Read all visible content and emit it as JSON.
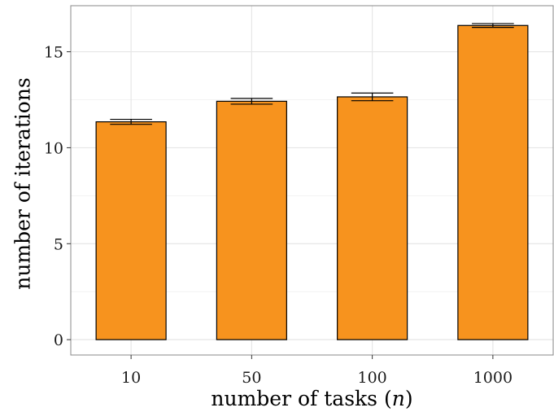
{
  "chart_data": {
    "type": "bar",
    "categories": [
      "10",
      "50",
      "100",
      "1000"
    ],
    "values": [
      11.35,
      12.42,
      12.65,
      16.37
    ],
    "errors": [
      [
        11.22,
        11.48
      ],
      [
        12.27,
        12.57
      ],
      [
        12.45,
        12.85
      ],
      [
        16.27,
        16.47
      ]
    ],
    "xlabel": "number of tasks (n)",
    "ylabel": "number of iterations",
    "ylim": [
      -0.8,
      17.4
    ],
    "yticks": [
      0,
      5,
      10,
      15
    ],
    "ytick_labels": [
      "0",
      "5",
      "10",
      "15"
    ],
    "grid": true,
    "legend": "none",
    "colors": {
      "bar_fill": "#F7931E",
      "bar_stroke": "#000000",
      "grid_major": "#e6e6e6",
      "grid_minor": "#f2f2f2",
      "panel_border": "#888888"
    }
  }
}
